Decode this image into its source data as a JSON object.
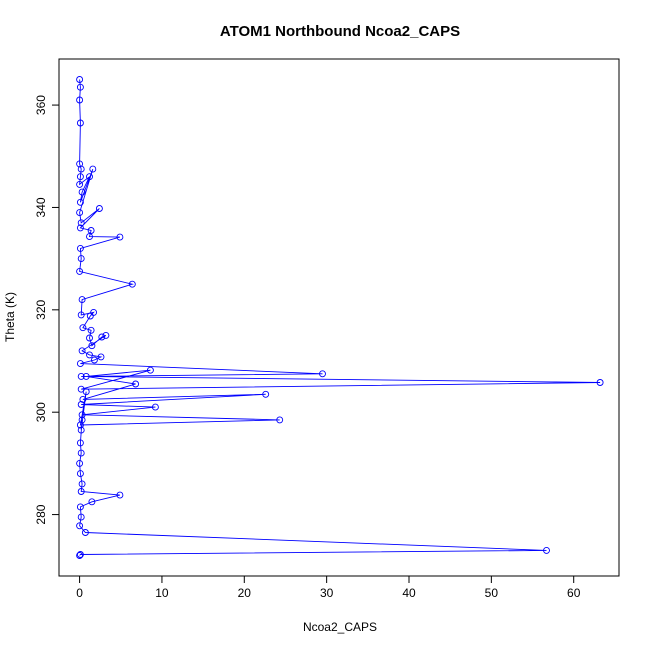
{
  "chart_data": {
    "type": "scatter",
    "title": "ATOM1 Northbound Ncoa2_CAPS",
    "xlabel": "Ncoa2_CAPS",
    "ylabel": "Theta (K)",
    "xlim": [
      -2.5,
      65.5
    ],
    "ylim": [
      268,
      369
    ],
    "xticks": [
      0,
      10,
      20,
      30,
      40,
      50,
      60
    ],
    "yticks": [
      280,
      300,
      320,
      340,
      360
    ],
    "grid": false,
    "legend": "none",
    "series_color": "#0000ff",
    "series": [
      {
        "points": [
          [
            0,
            365
          ],
          [
            0.1,
            363.5
          ],
          [
            0,
            361
          ],
          [
            0.1,
            356.5
          ],
          [
            0,
            348.5
          ],
          [
            0.2,
            347.5
          ],
          [
            0.1,
            346
          ],
          [
            0,
            344.5
          ],
          [
            1.2,
            346
          ],
          [
            0.3,
            343
          ],
          [
            0.1,
            341
          ],
          [
            1.6,
            347.5
          ],
          [
            0,
            339
          ],
          [
            0.2,
            337
          ],
          [
            2.4,
            339.8
          ],
          [
            0.1,
            336
          ],
          [
            1.4,
            335.5
          ],
          [
            1.2,
            334.3
          ],
          [
            4.9,
            334.2
          ],
          [
            0.1,
            332
          ],
          [
            0.2,
            330
          ],
          [
            0,
            327.5
          ],
          [
            6.4,
            325
          ],
          [
            0.3,
            322
          ],
          [
            0.2,
            319
          ],
          [
            1.7,
            319.5
          ],
          [
            1.3,
            318.8
          ],
          [
            0.4,
            316.5
          ],
          [
            1.4,
            316
          ],
          [
            1.2,
            314.5
          ],
          [
            1.5,
            313
          ],
          [
            2.7,
            314.7
          ],
          [
            3.2,
            315
          ],
          [
            0.3,
            312
          ],
          [
            1.2,
            311.2
          ],
          [
            2.6,
            310.8
          ],
          [
            1.8,
            310.2
          ],
          [
            0.1,
            309.5
          ],
          [
            29.5,
            307.5
          ],
          [
            0.2,
            307
          ],
          [
            63.2,
            305.8
          ],
          [
            0.2,
            304.5
          ],
          [
            8.6,
            308.2
          ],
          [
            0.8,
            307
          ],
          [
            6.8,
            305.5
          ],
          [
            0.4,
            302.5
          ],
          [
            22.6,
            303.5
          ],
          [
            0.2,
            301.5
          ],
          [
            9.2,
            301
          ],
          [
            0.3,
            299.5
          ],
          [
            24.3,
            298.5
          ],
          [
            0.1,
            297.5
          ],
          [
            0.8,
            304
          ],
          [
            0.2,
            296.5
          ],
          [
            0.3,
            298.5
          ],
          [
            0.1,
            294
          ],
          [
            0.2,
            292
          ],
          [
            0,
            290
          ],
          [
            0.1,
            288
          ],
          [
            0.3,
            286
          ],
          [
            0.2,
            284.5
          ],
          [
            4.9,
            283.8
          ],
          [
            1.5,
            282.5
          ],
          [
            0.1,
            281.5
          ],
          [
            0.2,
            279.5
          ],
          [
            0,
            277.8
          ],
          [
            0.7,
            276.5
          ],
          [
            56.7,
            273
          ],
          [
            0.1,
            272.2
          ],
          [
            0,
            272
          ]
        ]
      }
    ]
  }
}
